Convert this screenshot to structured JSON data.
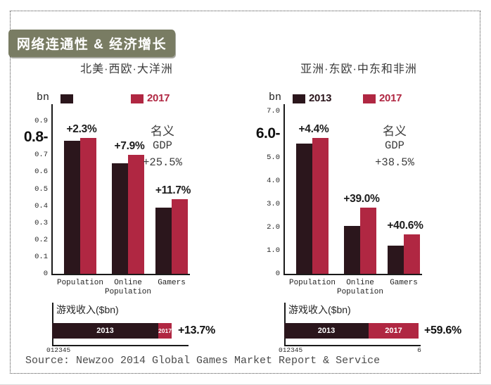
{
  "frame": {
    "badge_title": "网络连通性 & 经济增长",
    "source": "Source: Newzoo 2014 Global Games Market Report & Service"
  },
  "colors": {
    "bar_2013": "#2b161c",
    "bar_2017": "#b02742",
    "badge_bg": "#797c63",
    "axis": "#1a1a1a",
    "text_dark": "#1c1c1c",
    "text_gray": "#3d3d3d",
    "tick_text": "#2a2a2a",
    "source_text": "#4a4a4a"
  },
  "chart_data": [
    {
      "type": "bar",
      "region_title": "北美·西欧·大洋洲",
      "unit_label": "bn",
      "legend": [
        {
          "series": "2013",
          "label": ""
        },
        {
          "series": "2017",
          "label": "2017"
        }
      ],
      "categories": [
        [
          "Population"
        ],
        [
          "Online",
          "Population"
        ],
        [
          "Gamers"
        ]
      ],
      "series": [
        {
          "name": "2013",
          "values": [
            0.785,
            0.65,
            0.39
          ]
        },
        {
          "name": "2017",
          "values": [
            0.8,
            0.7,
            0.44
          ]
        }
      ],
      "growth_labels": [
        "+2.3%",
        "+7.9%",
        "+11.7%"
      ],
      "gdp_annotation": [
        "名义",
        "GDP",
        "+25.5%"
      ],
      "ylim": [
        0,
        1.0
      ],
      "yticks": [
        {
          "label": "0.9",
          "value": 0.9
        },
        {
          "label": "0.7",
          "value": 0.7
        },
        {
          "label": "0.6",
          "value": 0.6
        },
        {
          "label": "0.5",
          "value": 0.5
        },
        {
          "label": "0.4",
          "value": 0.4
        },
        {
          "label": "0.3",
          "value": 0.3
        },
        {
          "label": "0.2",
          "value": 0.2
        },
        {
          "label": "0.1",
          "value": 0.1
        },
        {
          "label": "0",
          "value": 0
        }
      ],
      "big_tick": {
        "label": "0.8-",
        "value": 0.8
      },
      "revenue": {
        "title": "游戏收入($bn)",
        "xmax": 5,
        "bars": [
          {
            "name": "2013",
            "value": 3.9
          },
          {
            "name": "2017",
            "value": 4.4
          }
        ],
        "growth_label": "+13.7%",
        "axis_text_left": "012345",
        "axis_text_right": ""
      }
    },
    {
      "type": "bar",
      "region_title": "亚洲·东欧·中东和非洲",
      "unit_label": "bn",
      "legend": [
        {
          "series": "2013",
          "label": "2013"
        },
        {
          "series": "2017",
          "label": "2017"
        }
      ],
      "categories": [
        [
          "Population"
        ],
        [
          "Online",
          "Population"
        ],
        [
          "Gamers"
        ]
      ],
      "series": [
        {
          "name": "2013",
          "values": [
            5.6,
            2.05,
            1.2
          ]
        },
        {
          "name": "2017",
          "values": [
            5.85,
            2.85,
            1.7
          ]
        }
      ],
      "growth_labels": [
        "+4.4%",
        "+39.0%",
        "+40.6%"
      ],
      "gdp_annotation": [
        "名义",
        "GDP",
        "+38.5%"
      ],
      "ylim": [
        0,
        7.3
      ],
      "yticks": [
        {
          "label": "7.0",
          "value": 7
        },
        {
          "label": "5.0",
          "value": 5
        },
        {
          "label": "4.0",
          "value": 4
        },
        {
          "label": "3.0",
          "value": 3
        },
        {
          "label": "2.0",
          "value": 2
        },
        {
          "label": "1.0",
          "value": 1
        },
        {
          "label": "0",
          "value": 0
        }
      ],
      "big_tick": {
        "label": "6.0-",
        "value": 6
      },
      "revenue": {
        "title": "游戏收入($bn)",
        "xmax": 6,
        "bars": [
          {
            "name": "2013",
            "value": 3.7
          },
          {
            "name": "2017",
            "value": 5.9
          }
        ],
        "growth_label": "+59.6%",
        "axis_text_left": "012345",
        "axis_text_right": "6"
      }
    }
  ]
}
